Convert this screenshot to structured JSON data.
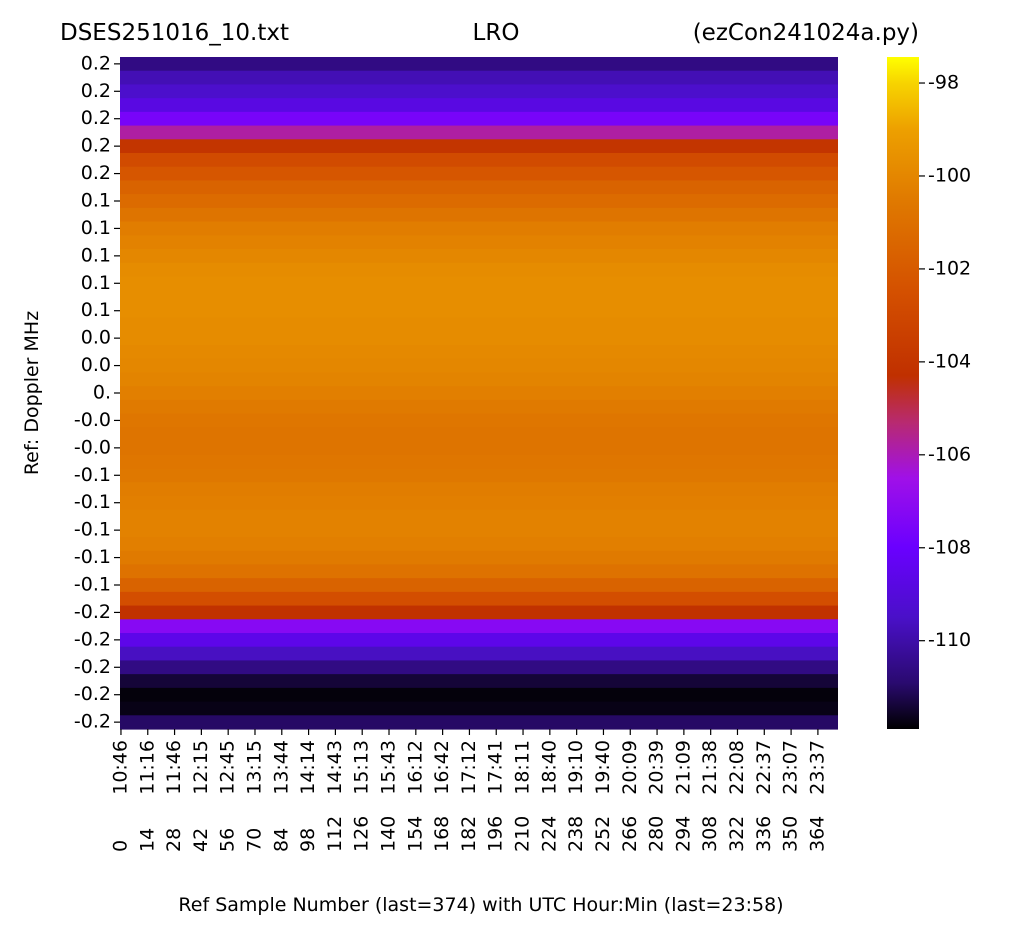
{
  "chart_data": {
    "type": "heatmap",
    "title_left": "DSES251016_10.txt",
    "title_center": "LRO",
    "title_right": "(ezCon241024a.py)",
    "y_label": "Ref:  Doppler MHz",
    "x_label": "Ref Sample Number (last=374) with UTC Hour:Min (last=23:58)",
    "row_labels": [
      "0.2",
      null,
      "0.2",
      null,
      "0.2",
      null,
      "0.2",
      null,
      "0.2",
      null,
      "0.1",
      null,
      "0.1",
      null,
      "0.1",
      null,
      "0.1",
      null,
      "0.1",
      null,
      "0.0",
      null,
      "0.0",
      null,
      "0.",
      null,
      "-0.0",
      null,
      "-0.0",
      null,
      "-0.1",
      null,
      "-0.1",
      null,
      "-0.1",
      null,
      "-0.1",
      null,
      "-0.1",
      null,
      "-0.2",
      null,
      "-0.2",
      null,
      "-0.2",
      null,
      "-0.2",
      null,
      "-0.2"
    ],
    "row_values": [
      -110.6,
      -109.8,
      -109.4,
      -108.8,
      -107.6,
      -105.8,
      -104.0,
      -102.8,
      -102.2,
      -101.6,
      -101.2,
      -100.8,
      -100.4,
      -100.2,
      -100.0,
      -99.8,
      -99.7,
      -99.7,
      -99.7,
      -99.8,
      -99.8,
      -99.9,
      -100.0,
      -100.1,
      -100.3,
      -100.5,
      -100.7,
      -100.8,
      -100.8,
      -100.7,
      -100.6,
      -100.4,
      -100.3,
      -100.2,
      -100.2,
      -100.3,
      -100.5,
      -100.9,
      -101.6,
      -102.6,
      -104.2,
      -107.2,
      -108.6,
      -109.6,
      -110.6,
      -111.4,
      -111.8,
      -111.7,
      -111.0
    ],
    "xlim": [
      0,
      375
    ],
    "xticks": [
      {
        "value": 0,
        "label": "10:46"
      },
      {
        "value": 14,
        "label": "11:16"
      },
      {
        "value": 28,
        "label": "11:46"
      },
      {
        "value": 42,
        "label": "12:15"
      },
      {
        "value": 56,
        "label": "12:45"
      },
      {
        "value": 70,
        "label": "13:15"
      },
      {
        "value": 84,
        "label": "13:44"
      },
      {
        "value": 98,
        "label": "14:14"
      },
      {
        "value": 112,
        "label": "14:43"
      },
      {
        "value": 126,
        "label": "15:13"
      },
      {
        "value": 140,
        "label": "15:43"
      },
      {
        "value": 154,
        "label": "16:12"
      },
      {
        "value": 168,
        "label": "16:42"
      },
      {
        "value": 182,
        "label": "17:12"
      },
      {
        "value": 196,
        "label": "17:41"
      },
      {
        "value": 210,
        "label": "18:11"
      },
      {
        "value": 224,
        "label": "18:40"
      },
      {
        "value": 238,
        "label": "19:10"
      },
      {
        "value": 252,
        "label": "19:40"
      },
      {
        "value": 266,
        "label": "20:09"
      },
      {
        "value": 280,
        "label": "20:39"
      },
      {
        "value": 294,
        "label": "21:09"
      },
      {
        "value": 308,
        "label": "21:38"
      },
      {
        "value": 322,
        "label": "22:08"
      },
      {
        "value": 336,
        "label": "22:37"
      },
      {
        "value": 350,
        "label": "23:07"
      },
      {
        "value": 364,
        "label": "23:37"
      }
    ],
    "clim": [
      -111.9,
      -97.44
    ],
    "cticks": [
      -98,
      -100,
      -102,
      -104,
      -106,
      -108,
      -110
    ],
    "colorscale": [
      [
        -111.9,
        "#000000"
      ],
      [
        -110.9,
        "#2a0a70"
      ],
      [
        -109.5,
        "#4a10c8"
      ],
      [
        -108,
        "#6a00ff"
      ],
      [
        -106.5,
        "#a010e8"
      ],
      [
        -105.3,
        "#b82a70"
      ],
      [
        -104.3,
        "#c03000"
      ],
      [
        -102.5,
        "#d45000"
      ],
      [
        -100.5,
        "#e07a00"
      ],
      [
        -99,
        "#eda000"
      ],
      [
        -98,
        "#f7d400"
      ],
      [
        -97.44,
        "#ffff00"
      ]
    ]
  }
}
